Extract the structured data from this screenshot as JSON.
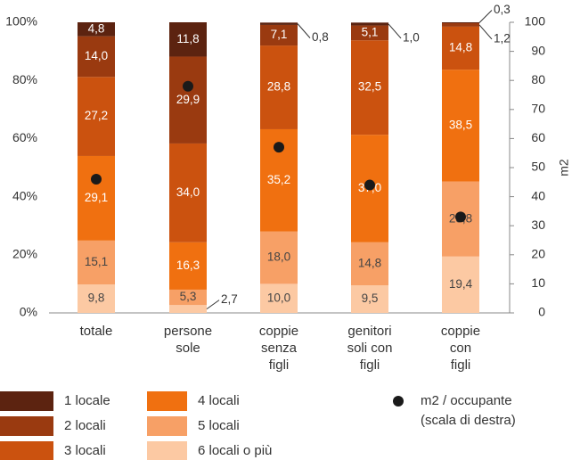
{
  "chart_data": {
    "type": "stacked_bar",
    "categories": [
      [
        "totale"
      ],
      [
        "persone",
        "sole"
      ],
      [
        "coppie",
        "senza",
        "figli"
      ],
      [
        "genitori",
        "soli con",
        "figli"
      ],
      [
        "coppie",
        "con",
        "figli"
      ]
    ],
    "series": [
      {
        "name": "1 locale",
        "color": "#5c2310",
        "values": [
          4.8,
          11.8,
          0.8,
          1.0,
          0.3
        ],
        "value_labels": [
          "4,8",
          "11,8",
          "0,8",
          "1,0",
          "0,3"
        ]
      },
      {
        "name": "2 locali",
        "color": "#9a3a10",
        "values": [
          14.0,
          29.9,
          7.1,
          5.1,
          1.2
        ],
        "value_labels": [
          "14,0",
          "29,9",
          "7,1",
          "5,1",
          "1,2"
        ]
      },
      {
        "name": "3 locali",
        "color": "#cb520f",
        "values": [
          27.2,
          34.0,
          28.8,
          32.5,
          14.8
        ],
        "value_labels": [
          "27,2",
          "34,0",
          "28,8",
          "32,5",
          "14,8"
        ]
      },
      {
        "name": "4 locali",
        "color": "#f07010",
        "values": [
          29.1,
          16.3,
          35.2,
          37.0,
          38.5
        ],
        "value_labels": [
          "29,1",
          "16,3",
          "35,2",
          "37,0",
          "38,5"
        ]
      },
      {
        "name": "5 locali",
        "color": "#f7a066",
        "values": [
          15.1,
          5.3,
          18.0,
          14.8,
          25.8
        ],
        "value_labels": [
          "15,1",
          "5,3",
          "18,0",
          "14,8",
          "25,8"
        ]
      },
      {
        "name": "6 locali o più",
        "color": "#fcc9a3",
        "values": [
          9.8,
          2.7,
          10.0,
          9.5,
          19.4
        ],
        "value_labels": [
          "9,8",
          "2,7",
          "10,0",
          "9,5",
          "19,4"
        ]
      },
      {
        "name": [
          "m2 / occupante",
          "(scala di destra)"
        ],
        "type": "scatter",
        "axis": "y2",
        "color": "#1a1a1a",
        "values": [
          46,
          78,
          57,
          44,
          33
        ]
      }
    ],
    "ylim": [
      0,
      100
    ],
    "yticks": [
      {
        "value": 0,
        "label": "0%"
      },
      {
        "value": 20,
        "label": "20%"
      },
      {
        "value": 40,
        "label": "40%"
      },
      {
        "value": 60,
        "label": "60%"
      },
      {
        "value": 80,
        "label": "80%"
      },
      {
        "value": 100,
        "label": "100%"
      }
    ],
    "y2lim": [
      0,
      100
    ],
    "y2ticks": [
      0,
      10,
      20,
      30,
      40,
      50,
      60,
      70,
      80,
      90,
      100
    ],
    "y2label": "m2",
    "grid": false
  }
}
